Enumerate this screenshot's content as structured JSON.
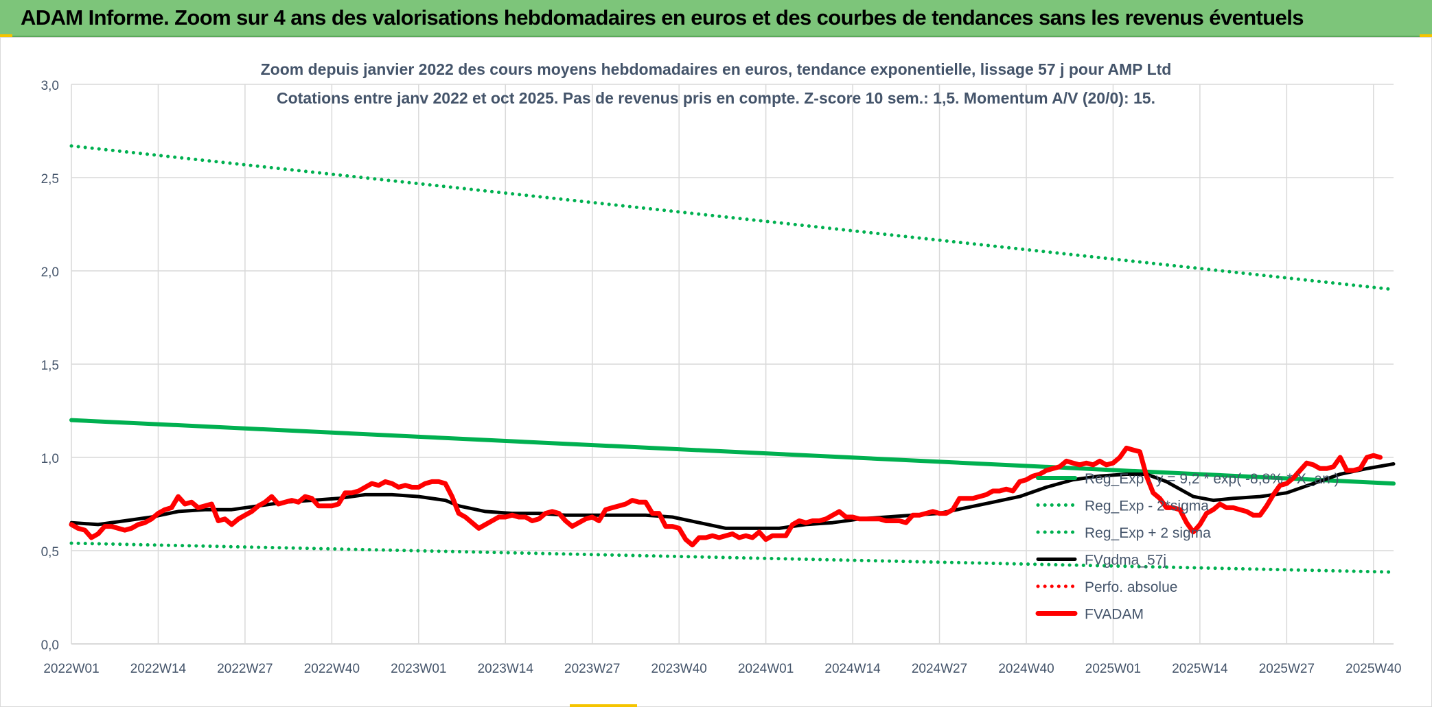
{
  "banner": {
    "title": "ADAM Informe. Zoom sur 4 ans des valorisations hebdomadaires en euros et des courbes de tendances sans les revenus éventuels"
  },
  "colors": {
    "banner_bg": "#7dc57a",
    "trend_green": "#00b050",
    "price_red": "#ff0000",
    "smooth_black": "#000000",
    "grid": "#d9d9d9",
    "text": "#44546a"
  },
  "chart_data": {
    "type": "line",
    "title": "Zoom depuis janvier 2022 des cours moyens hebdomadaires en euros, tendance exponentielle, lissage 57 j pour AMP Ltd",
    "subtitle": "Cotations entre janv 2022 et oct 2025. Pas de revenus pris en compte. Z-score 10 sem.: 1,5. Momentum A/V (20/0): 15.",
    "xlabel": "",
    "ylabel": "",
    "ylim": [
      0,
      3.0
    ],
    "y_ticks": [
      "0,0",
      "0,5",
      "1,0",
      "1,5",
      "2,0",
      "2,5",
      "3,0"
    ],
    "x_range_weeks": [
      0,
      198
    ],
    "x_ticks": [
      {
        "week": 0,
        "label": "2022W01"
      },
      {
        "week": 13,
        "label": "2022W14"
      },
      {
        "week": 26,
        "label": "2022W27"
      },
      {
        "week": 39,
        "label": "2022W40"
      },
      {
        "week": 52,
        "label": "2023W01"
      },
      {
        "week": 65,
        "label": "2023W14"
      },
      {
        "week": 78,
        "label": "2023W27"
      },
      {
        "week": 91,
        "label": "2023W40"
      },
      {
        "week": 104,
        "label": "2024W01"
      },
      {
        "week": 117,
        "label": "2024W14"
      },
      {
        "week": 130,
        "label": "2024W27"
      },
      {
        "week": 143,
        "label": "2024W40"
      },
      {
        "week": 156,
        "label": "2025W01"
      },
      {
        "week": 169,
        "label": "2025W14"
      },
      {
        "week": 182,
        "label": "2025W27"
      },
      {
        "week": 195,
        "label": "2025W40"
      }
    ],
    "grid": true,
    "legend_position": "right, inside lower-right of plot",
    "series": [
      {
        "name": "Reg_Exp : y = 9,2 * exp( -8,8% * X_an )",
        "style": "solid-thick",
        "color": "#00b050",
        "points": [
          [
            0,
            1.2
          ],
          [
            198,
            0.86
          ]
        ]
      },
      {
        "name": "Reg_Exp - 2*sigma",
        "style": "dotted",
        "color": "#00b050",
        "points": [
          [
            0,
            0.54
          ],
          [
            198,
            0.385
          ]
        ]
      },
      {
        "name": "Reg_Exp + 2 sigma",
        "style": "dotted",
        "color": "#00b050",
        "points": [
          [
            0,
            2.67
          ],
          [
            198,
            1.9
          ]
        ]
      },
      {
        "name": "FVgdma_57j",
        "style": "solid",
        "color": "#000000",
        "points": [
          [
            0,
            0.65
          ],
          [
            4,
            0.64
          ],
          [
            8,
            0.66
          ],
          [
            12,
            0.68
          ],
          [
            16,
            0.71
          ],
          [
            20,
            0.72
          ],
          [
            24,
            0.72
          ],
          [
            28,
            0.74
          ],
          [
            32,
            0.76
          ],
          [
            36,
            0.77
          ],
          [
            40,
            0.78
          ],
          [
            44,
            0.8
          ],
          [
            48,
            0.8
          ],
          [
            52,
            0.79
          ],
          [
            56,
            0.77
          ],
          [
            58,
            0.74
          ],
          [
            62,
            0.71
          ],
          [
            66,
            0.7
          ],
          [
            70,
            0.7
          ],
          [
            74,
            0.69
          ],
          [
            78,
            0.69
          ],
          [
            82,
            0.69
          ],
          [
            86,
            0.69
          ],
          [
            90,
            0.68
          ],
          [
            94,
            0.65
          ],
          [
            98,
            0.62
          ],
          [
            102,
            0.62
          ],
          [
            106,
            0.62
          ],
          [
            110,
            0.64
          ],
          [
            114,
            0.65
          ],
          [
            118,
            0.67
          ],
          [
            122,
            0.68
          ],
          [
            126,
            0.69
          ],
          [
            130,
            0.7
          ],
          [
            134,
            0.73
          ],
          [
            138,
            0.76
          ],
          [
            142,
            0.79
          ],
          [
            146,
            0.84
          ],
          [
            150,
            0.88
          ],
          [
            154,
            0.9
          ],
          [
            158,
            0.91
          ],
          [
            161,
            0.91
          ],
          [
            164,
            0.87
          ],
          [
            168,
            0.79
          ],
          [
            171,
            0.77
          ],
          [
            174,
            0.78
          ],
          [
            178,
            0.79
          ],
          [
            182,
            0.81
          ],
          [
            186,
            0.86
          ],
          [
            190,
            0.91
          ],
          [
            194,
            0.94
          ],
          [
            198,
            0.965
          ]
        ]
      },
      {
        "name": "Perfo. absolue",
        "style": "dotted",
        "color": "#ff0000",
        "points": []
      },
      {
        "name": "FVADAM",
        "style": "solid-thick",
        "color": "#ff0000",
        "points": [
          [
            0,
            0.64
          ],
          [
            1,
            0.62
          ],
          [
            2,
            0.61
          ],
          [
            3,
            0.57
          ],
          [
            4,
            0.59
          ],
          [
            5,
            0.63
          ],
          [
            6,
            0.63
          ],
          [
            7,
            0.62
          ],
          [
            8,
            0.61
          ],
          [
            9,
            0.62
          ],
          [
            10,
            0.64
          ],
          [
            11,
            0.65
          ],
          [
            12,
            0.67
          ],
          [
            13,
            0.7
          ],
          [
            14,
            0.72
          ],
          [
            15,
            0.73
          ],
          [
            16,
            0.79
          ],
          [
            17,
            0.75
          ],
          [
            18,
            0.76
          ],
          [
            19,
            0.73
          ],
          [
            20,
            0.74
          ],
          [
            21,
            0.75
          ],
          [
            22,
            0.66
          ],
          [
            23,
            0.67
          ],
          [
            24,
            0.64
          ],
          [
            25,
            0.67
          ],
          [
            26,
            0.69
          ],
          [
            27,
            0.71
          ],
          [
            28,
            0.74
          ],
          [
            29,
            0.76
          ],
          [
            30,
            0.79
          ],
          [
            31,
            0.75
          ],
          [
            32,
            0.76
          ],
          [
            33,
            0.77
          ],
          [
            34,
            0.76
          ],
          [
            35,
            0.79
          ],
          [
            36,
            0.78
          ],
          [
            37,
            0.74
          ],
          [
            38,
            0.74
          ],
          [
            39,
            0.74
          ],
          [
            40,
            0.75
          ],
          [
            41,
            0.81
          ],
          [
            42,
            0.81
          ],
          [
            43,
            0.82
          ],
          [
            44,
            0.84
          ],
          [
            45,
            0.86
          ],
          [
            46,
            0.85
          ],
          [
            47,
            0.87
          ],
          [
            48,
            0.86
          ],
          [
            49,
            0.84
          ],
          [
            50,
            0.85
          ],
          [
            51,
            0.84
          ],
          [
            52,
            0.84
          ],
          [
            53,
            0.86
          ],
          [
            54,
            0.87
          ],
          [
            55,
            0.87
          ],
          [
            56,
            0.86
          ],
          [
            57,
            0.79
          ],
          [
            58,
            0.7
          ],
          [
            59,
            0.68
          ],
          [
            60,
            0.65
          ],
          [
            61,
            0.62
          ],
          [
            62,
            0.64
          ],
          [
            63,
            0.66
          ],
          [
            64,
            0.68
          ],
          [
            65,
            0.68
          ],
          [
            66,
            0.69
          ],
          [
            67,
            0.68
          ],
          [
            68,
            0.68
          ],
          [
            69,
            0.66
          ],
          [
            70,
            0.67
          ],
          [
            71,
            0.7
          ],
          [
            72,
            0.71
          ],
          [
            73,
            0.7
          ],
          [
            74,
            0.66
          ],
          [
            75,
            0.63
          ],
          [
            76,
            0.65
          ],
          [
            77,
            0.67
          ],
          [
            78,
            0.68
          ],
          [
            79,
            0.66
          ],
          [
            80,
            0.72
          ],
          [
            81,
            0.73
          ],
          [
            82,
            0.74
          ],
          [
            83,
            0.75
          ],
          [
            84,
            0.77
          ],
          [
            85,
            0.76
          ],
          [
            86,
            0.76
          ],
          [
            87,
            0.7
          ],
          [
            88,
            0.7
          ],
          [
            89,
            0.63
          ],
          [
            90,
            0.63
          ],
          [
            91,
            0.62
          ],
          [
            92,
            0.56
          ],
          [
            93,
            0.53
          ],
          [
            94,
            0.57
          ],
          [
            95,
            0.57
          ],
          [
            96,
            0.58
          ],
          [
            97,
            0.57
          ],
          [
            98,
            0.58
          ],
          [
            99,
            0.59
          ],
          [
            100,
            0.57
          ],
          [
            101,
            0.58
          ],
          [
            102,
            0.57
          ],
          [
            103,
            0.6
          ],
          [
            104,
            0.56
          ],
          [
            105,
            0.58
          ],
          [
            106,
            0.58
          ],
          [
            107,
            0.58
          ],
          [
            108,
            0.64
          ],
          [
            109,
            0.66
          ],
          [
            110,
            0.65
          ],
          [
            111,
            0.66
          ],
          [
            112,
            0.66
          ],
          [
            113,
            0.67
          ],
          [
            114,
            0.69
          ],
          [
            115,
            0.71
          ],
          [
            116,
            0.68
          ],
          [
            117,
            0.68
          ],
          [
            118,
            0.67
          ],
          [
            119,
            0.67
          ],
          [
            120,
            0.67
          ],
          [
            121,
            0.67
          ],
          [
            122,
            0.66
          ],
          [
            123,
            0.66
          ],
          [
            124,
            0.66
          ],
          [
            125,
            0.65
          ],
          [
            126,
            0.69
          ],
          [
            127,
            0.69
          ],
          [
            128,
            0.7
          ],
          [
            129,
            0.71
          ],
          [
            130,
            0.7
          ],
          [
            131,
            0.7
          ],
          [
            132,
            0.72
          ],
          [
            133,
            0.78
          ],
          [
            134,
            0.78
          ],
          [
            135,
            0.78
          ],
          [
            136,
            0.79
          ],
          [
            137,
            0.8
          ],
          [
            138,
            0.82
          ],
          [
            139,
            0.82
          ],
          [
            140,
            0.83
          ],
          [
            141,
            0.82
          ],
          [
            142,
            0.87
          ],
          [
            143,
            0.88
          ],
          [
            144,
            0.9
          ],
          [
            145,
            0.91
          ],
          [
            146,
            0.93
          ],
          [
            147,
            0.94
          ],
          [
            148,
            0.95
          ],
          [
            149,
            0.98
          ],
          [
            150,
            0.97
          ],
          [
            151,
            0.96
          ],
          [
            152,
            0.97
          ],
          [
            153,
            0.96
          ],
          [
            154,
            0.98
          ],
          [
            155,
            0.96
          ],
          [
            156,
            0.97
          ],
          [
            157,
            1.0
          ],
          [
            158,
            1.05
          ],
          [
            159,
            1.04
          ],
          [
            160,
            1.03
          ],
          [
            161,
            0.9
          ],
          [
            162,
            0.81
          ],
          [
            163,
            0.78
          ],
          [
            164,
            0.73
          ],
          [
            165,
            0.73
          ],
          [
            166,
            0.72
          ],
          [
            167,
            0.65
          ],
          [
            168,
            0.6
          ],
          [
            169,
            0.64
          ],
          [
            170,
            0.7
          ],
          [
            171,
            0.72
          ],
          [
            172,
            0.75
          ],
          [
            173,
            0.73
          ],
          [
            174,
            0.73
          ],
          [
            175,
            0.72
          ],
          [
            176,
            0.71
          ],
          [
            177,
            0.69
          ],
          [
            178,
            0.69
          ],
          [
            179,
            0.74
          ],
          [
            180,
            0.8
          ],
          [
            181,
            0.85
          ],
          [
            182,
            0.86
          ],
          [
            183,
            0.89
          ],
          [
            184,
            0.93
          ],
          [
            185,
            0.97
          ],
          [
            186,
            0.96
          ],
          [
            187,
            0.94
          ],
          [
            188,
            0.94
          ],
          [
            189,
            0.95
          ],
          [
            190,
            1.0
          ],
          [
            191,
            0.93
          ],
          [
            192,
            0.93
          ],
          [
            193,
            0.94
          ],
          [
            194,
            1.0
          ],
          [
            195,
            1.01
          ],
          [
            196,
            1.0
          ]
        ]
      }
    ]
  }
}
